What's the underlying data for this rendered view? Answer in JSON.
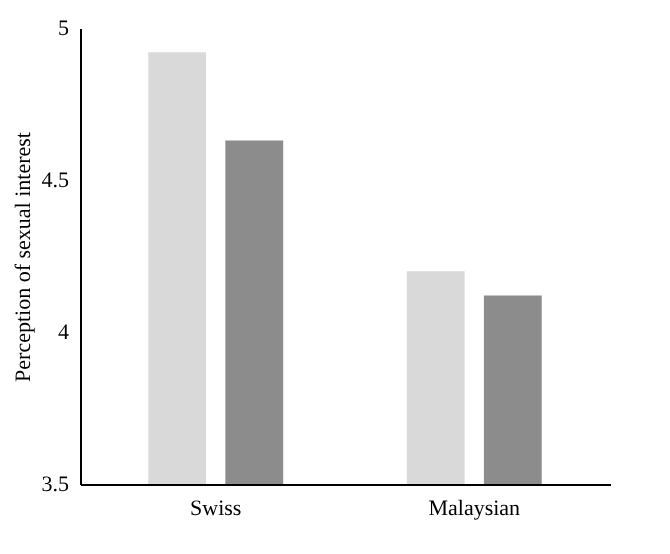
{
  "chart_data": {
    "type": "bar",
    "ylabel": "Perception of sexual interest",
    "categories": [
      "Swiss",
      "Malaysian"
    ],
    "series": [
      {
        "color": "#d9d9d9",
        "values": [
          4.92,
          4.2
        ]
      },
      {
        "color": "#8c8c8c",
        "values": [
          4.63,
          4.12
        ]
      }
    ],
    "ylim": [
      3.5,
      5
    ],
    "yticks": [
      3.5,
      4,
      4.5,
      5
    ],
    "grid": false,
    "legend": false
  }
}
